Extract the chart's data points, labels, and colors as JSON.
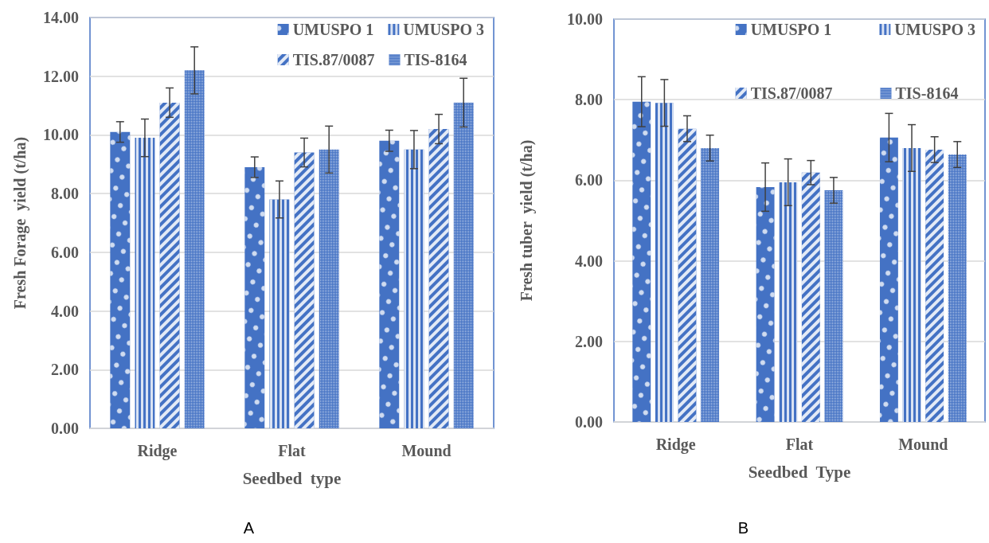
{
  "chart_data": [
    {
      "type": "bar",
      "xlabel": "Seedbed  type",
      "ylabel": "Fresh Forage  yield (t/ha)",
      "categories": [
        "Ridge",
        "Flat",
        "Mound"
      ],
      "series": [
        {
          "name": "UMUSPO 1",
          "color": "#4472c4",
          "values": [
            10.1,
            8.9,
            9.8
          ],
          "errors": [
            0.35,
            0.35,
            0.36
          ]
        },
        {
          "name": "UMUSPO 3",
          "color": "#4472c4",
          "values": [
            9.9,
            7.8,
            9.5
          ],
          "errors": [
            0.64,
            0.63,
            0.65
          ]
        },
        {
          "name": "TIS.87/0087",
          "color": "#4472c4",
          "values": [
            11.1,
            9.4,
            10.2
          ],
          "errors": [
            0.5,
            0.49,
            0.5
          ]
        },
        {
          "name": "TIS-8164",
          "color": "#4472c4",
          "values": [
            12.2,
            9.5,
            11.1
          ],
          "errors": [
            0.8,
            0.8,
            0.83
          ]
        }
      ],
      "ylim": [
        0,
        14
      ],
      "yticks": [
        {
          "value": 0,
          "label": "0.00"
        },
        {
          "value": 2,
          "label": "2.00"
        },
        {
          "value": 4,
          "label": "4.00"
        },
        {
          "value": 6,
          "label": "6.00"
        },
        {
          "value": 8,
          "label": "8.00"
        },
        {
          "value": 10,
          "label": "10.00"
        },
        {
          "value": 12,
          "label": "12.00"
        },
        {
          "value": 14,
          "label": "14.00"
        }
      ],
      "grid": "y",
      "legend": "top right",
      "annotations": [
        "A"
      ]
    },
    {
      "type": "bar",
      "xlabel": "Seedbed  Type",
      "ylabel": "Fresh tuber  yield (t/ha)",
      "categories": [
        "Ridge",
        "Flat",
        "Mound"
      ],
      "series": [
        {
          "name": "UMUSPO 1",
          "color": "#4472c4",
          "values": [
            7.95,
            5.83,
            7.06
          ],
          "errors": [
            0.62,
            0.6,
            0.6
          ]
        },
        {
          "name": "UMUSPO 3",
          "color": "#4472c4",
          "values": [
            7.92,
            5.95,
            6.8
          ],
          "errors": [
            0.58,
            0.58,
            0.58
          ]
        },
        {
          "name": "TIS.87/0087",
          "color": "#4472c4",
          "values": [
            7.28,
            6.19,
            6.76
          ],
          "errors": [
            0.32,
            0.3,
            0.32
          ]
        },
        {
          "name": "TIS-8164",
          "color": "#4472c4",
          "values": [
            6.8,
            5.75,
            6.64
          ],
          "errors": [
            0.32,
            0.32,
            0.32
          ]
        }
      ],
      "ylim": [
        0,
        10
      ],
      "yticks": [
        {
          "value": 0,
          "label": "0.00"
        },
        {
          "value": 2,
          "label": "2.00"
        },
        {
          "value": 4,
          "label": "4.00"
        },
        {
          "value": 6,
          "label": "6.00"
        },
        {
          "value": 8,
          "label": "8.00"
        },
        {
          "value": 10,
          "label": "10.00"
        }
      ],
      "grid": "y",
      "legend": "top right",
      "annotations": [
        "B"
      ]
    }
  ]
}
